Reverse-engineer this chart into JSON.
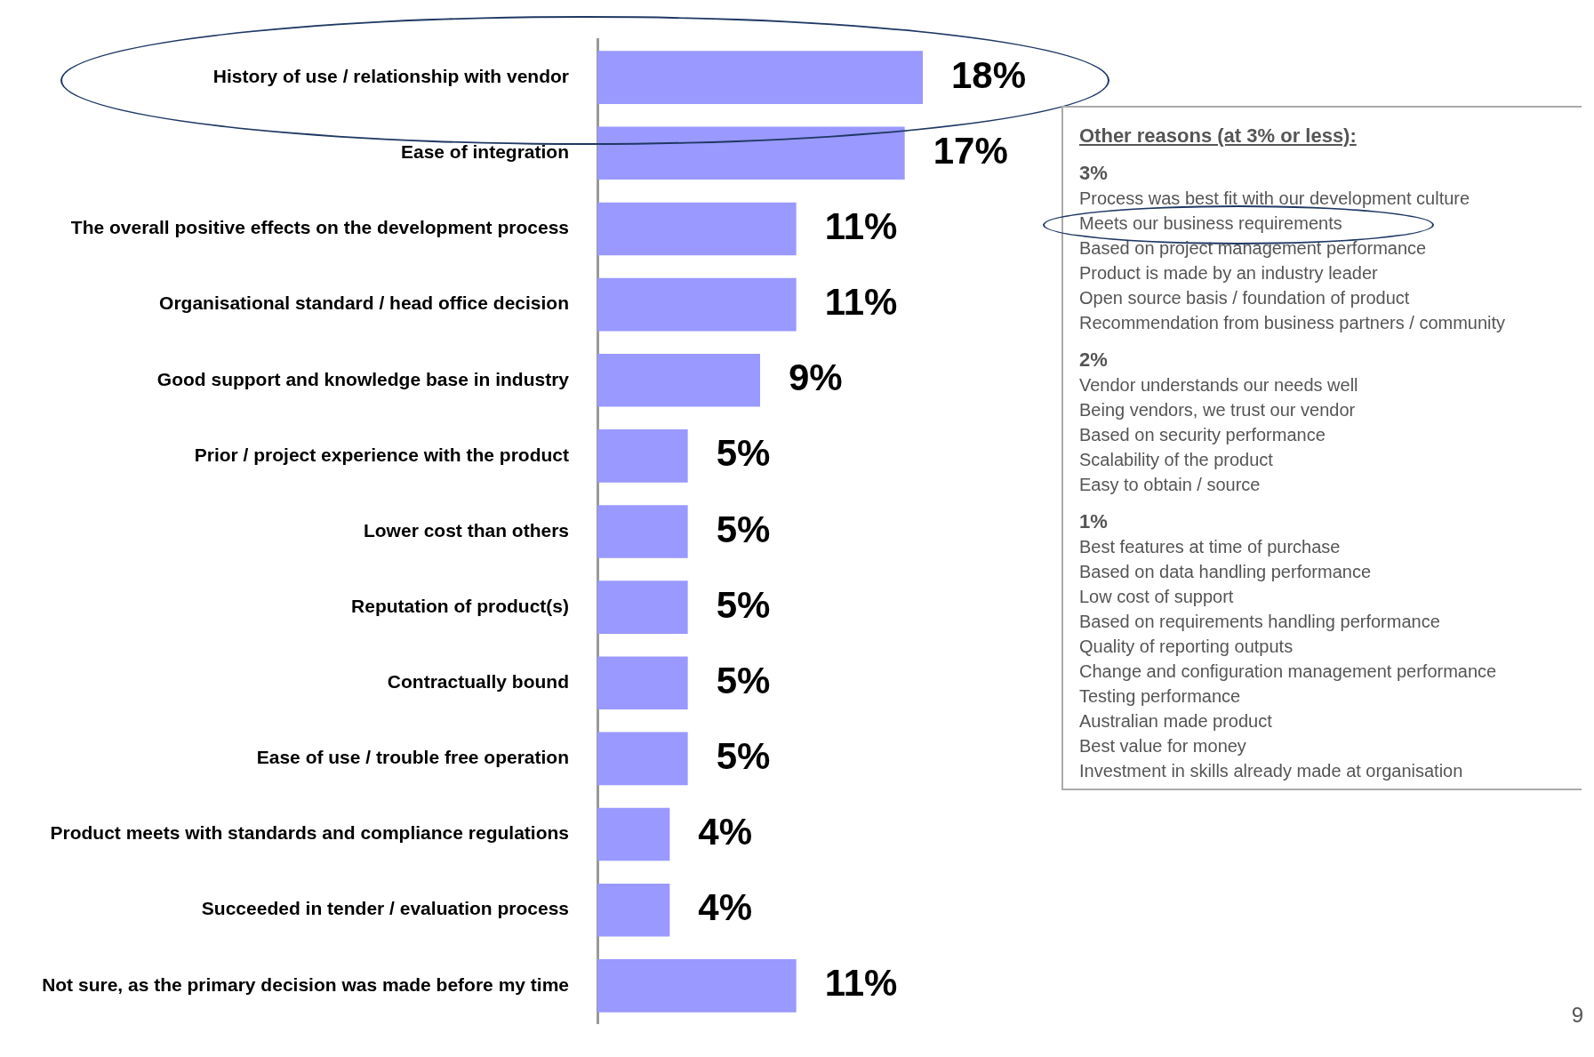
{
  "chart_data": {
    "type": "bar",
    "orientation": "horizontal",
    "categories": [
      "History of use / relationship with vendor",
      "Ease of integration",
      "The overall positive effects on the development process",
      "Organisational standard / head office decision",
      "Good support and knowledge base in industry",
      "Prior / project experience with the product",
      "Lower cost than others",
      "Reputation of product(s)",
      "Contractually bound",
      "Ease of use / trouble free operation",
      "Product meets with standards and compliance regulations",
      "Succeeded in tender / evaluation process",
      "Not sure, as the primary decision was made before my time"
    ],
    "values": [
      18,
      17,
      11,
      11,
      9,
      5,
      5,
      5,
      5,
      5,
      4,
      4,
      11
    ],
    "value_labels": [
      "18%",
      "17%",
      "11%",
      "11%",
      "9%",
      "5%",
      "5%",
      "5%",
      "5%",
      "5%",
      "4%",
      "4%",
      "11%"
    ],
    "color": "#9999ff",
    "tick_labels": "y",
    "legend": false,
    "annotations": [
      "Other reasons (at 3% or less):",
      "3%",
      "Process was best fit with our development culture",
      "Meets our business requirements",
      "Based on project management performance",
      "Product is made by an industry leader",
      "Open source basis / foundation of product",
      "Recommendation from business partners / community",
      "2%",
      "Vendor understands our needs well",
      "Being vendors, we trust our vendor",
      "Based on security performance",
      "Scalability of the product",
      "Easy to obtain / source",
      "1%",
      "Best features at time of purchase",
      "Based on data handling performance",
      "Low cost of support",
      "Based on requirements handling performance",
      "Quality of reporting outputs",
      "Change and configuration management performance",
      "Testing performance",
      "Australian made product",
      "Best value for money",
      "Investment in skills already made at organisation",
      "9"
    ]
  }
}
